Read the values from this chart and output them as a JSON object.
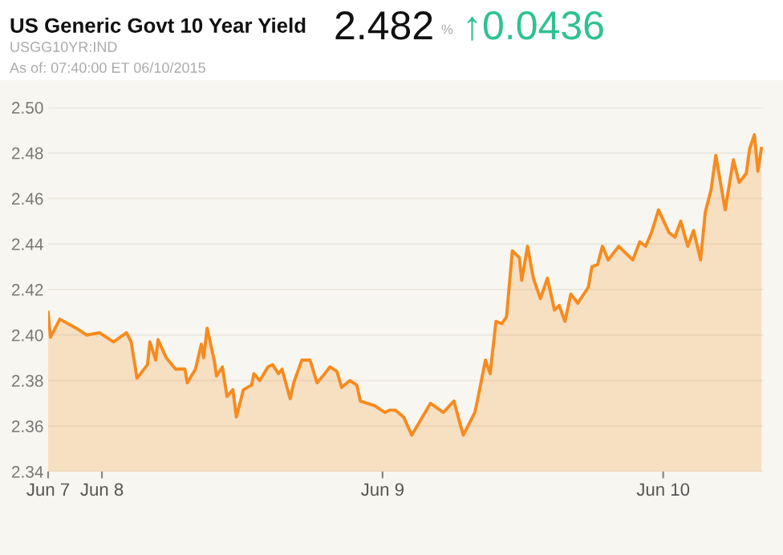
{
  "chart_data": {
    "type": "area",
    "title": "US Generic Govt 10 Year Yield",
    "subtitle": "USGG10YR:IND",
    "annotations": [
      "2.482",
      "%",
      "↑0.0436",
      "As of: 07:40:00 ET 06/10/2015"
    ],
    "x": [
      "2015-06-07T19:24",
      "2015-06-07T19:36",
      "2015-06-07T20:24",
      "2015-06-07T21:48",
      "2015-06-07T22:42",
      "2015-06-07T23:48",
      "2015-06-08T01:00",
      "2015-06-08T02:06",
      "2015-06-08T02:30",
      "2015-06-08T03:00",
      "2015-06-08T03:54",
      "2015-06-08T04:06",
      "2015-06-08T04:36",
      "2015-06-08T04:48",
      "2015-06-08T05:30",
      "2015-06-08T06:18",
      "2015-06-08T07:06",
      "2015-06-08T07:18",
      "2015-06-08T08:00",
      "2015-06-08T08:30",
      "2015-06-08T08:42",
      "2015-06-08T09:00",
      "2015-06-08T09:36",
      "2015-06-08T09:48",
      "2015-06-08T10:18",
      "2015-06-08T10:42",
      "2015-06-08T11:12",
      "2015-06-08T11:30",
      "2015-06-08T12:06",
      "2015-06-08T12:48",
      "2015-06-08T13:00",
      "2015-06-08T13:30",
      "2015-06-08T14:12",
      "2015-06-08T14:36",
      "2015-06-08T15:06",
      "2015-06-08T15:24",
      "2015-06-08T16:06",
      "2015-06-08T16:24",
      "2015-06-08T17:06",
      "2015-06-08T17:48",
      "2015-06-08T18:24",
      "2015-06-08T18:54",
      "2015-06-08T19:30",
      "2015-06-08T20:06",
      "2015-06-08T20:30",
      "2015-06-08T21:12",
      "2015-06-08T21:48",
      "2015-06-08T22:06",
      "2015-06-08T23:18",
      "2015-06-09T00:12",
      "2015-06-09T00:36",
      "2015-06-09T01:06",
      "2015-06-09T01:48",
      "2015-06-09T02:30",
      "2015-06-09T04:06",
      "2015-06-09T05:12",
      "2015-06-09T06:06",
      "2015-06-09T06:54",
      "2015-06-09T07:54",
      "2015-06-09T08:18",
      "2015-06-09T08:48",
      "2015-06-09T09:12",
      "2015-06-09T09:42",
      "2015-06-09T10:12",
      "2015-06-09T10:36",
      "2015-06-09T11:06",
      "2015-06-09T11:42",
      "2015-06-09T11:54",
      "2015-06-09T12:24",
      "2015-06-09T12:54",
      "2015-06-09T13:30",
      "2015-06-09T14:06",
      "2015-06-09T14:42",
      "2015-06-09T15:06",
      "2015-06-09T15:36",
      "2015-06-09T16:06",
      "2015-06-09T16:42",
      "2015-06-09T17:36",
      "2015-06-09T17:54",
      "2015-06-09T18:24",
      "2015-06-09T18:48",
      "2015-06-09T19:18",
      "2015-06-09T20:12",
      "2015-06-09T21:24",
      "2015-06-09T22:00",
      "2015-06-09T22:30",
      "2015-06-09T23:00",
      "2015-06-09T23:36",
      "2015-06-10T00:30",
      "2015-06-10T01:00",
      "2015-06-10T01:30",
      "2015-06-10T02:06",
      "2015-06-10T02:36",
      "2015-06-10T03:12",
      "2015-06-10T03:36",
      "2015-06-10T04:06",
      "2015-06-10T04:30",
      "2015-06-10T04:54",
      "2015-06-10T05:18",
      "2015-06-10T06:00",
      "2015-06-10T06:30",
      "2015-06-10T07:06",
      "2015-06-10T07:24",
      "2015-06-10T07:48",
      "2015-06-10T08:06",
      "2015-06-10T08:24"
    ],
    "series": [
      {
        "color": "#f68b1f",
        "values": [
          2.41,
          2.399,
          2.407,
          2.403,
          2.4,
          2.401,
          2.397,
          2.401,
          2.397,
          2.381,
          2.387,
          2.397,
          2.389,
          2.398,
          2.39,
          2.385,
          2.385,
          2.379,
          2.385,
          2.396,
          2.39,
          2.403,
          2.389,
          2.382,
          2.386,
          2.373,
          2.376,
          2.364,
          2.376,
          2.378,
          2.383,
          2.38,
          2.386,
          2.387,
          2.383,
          2.385,
          2.372,
          2.379,
          2.389,
          2.389,
          2.379,
          2.382,
          2.386,
          2.384,
          2.377,
          2.38,
          2.378,
          2.371,
          2.369,
          2.366,
          2.367,
          2.367,
          2.364,
          2.356,
          2.37,
          2.366,
          2.371,
          2.356,
          2.366,
          2.376,
          2.389,
          2.383,
          2.406,
          2.405,
          2.408,
          2.437,
          2.434,
          2.424,
          2.439,
          2.425,
          2.416,
          2.425,
          2.411,
          2.413,
          2.406,
          2.418,
          2.414,
          2.421,
          2.43,
          2.431,
          2.439,
          2.433,
          2.439,
          2.433,
          2.441,
          2.439,
          2.445,
          2.455,
          2.445,
          2.443,
          2.45,
          2.439,
          2.446,
          2.433,
          2.454,
          2.464,
          2.479,
          2.467,
          2.455,
          2.477,
          2.467,
          2.471,
          2.482,
          2.488,
          2.472,
          2.482
        ]
      }
    ],
    "xlim": [
      "2015-06-07T19:24",
      "2015-06-10T08:36"
    ],
    "xticks": [
      {
        "value": "2015-06-07T19:24",
        "label": "Jun 7"
      },
      {
        "value": "2015-06-08",
        "label": "Jun 8"
      },
      {
        "value": "2015-06-09",
        "label": "Jun 9"
      },
      {
        "value": "2015-06-10",
        "label": "Jun 10"
      }
    ],
    "ylim": [
      2.34,
      2.5
    ],
    "yticks": [
      {
        "value": 2.34,
        "label": "2.34"
      },
      {
        "value": 2.36,
        "label": "2.36"
      },
      {
        "value": 2.38,
        "label": "2.38"
      },
      {
        "value": 2.4,
        "label": "2.40"
      },
      {
        "value": 2.42,
        "label": "2.42"
      },
      {
        "value": 2.44,
        "label": "2.44"
      },
      {
        "value": 2.46,
        "label": "2.46"
      },
      {
        "value": 2.48,
        "label": "2.48"
      },
      {
        "value": 2.5,
        "label": "2.50"
      }
    ],
    "grid": "y",
    "legend": false
  }
}
